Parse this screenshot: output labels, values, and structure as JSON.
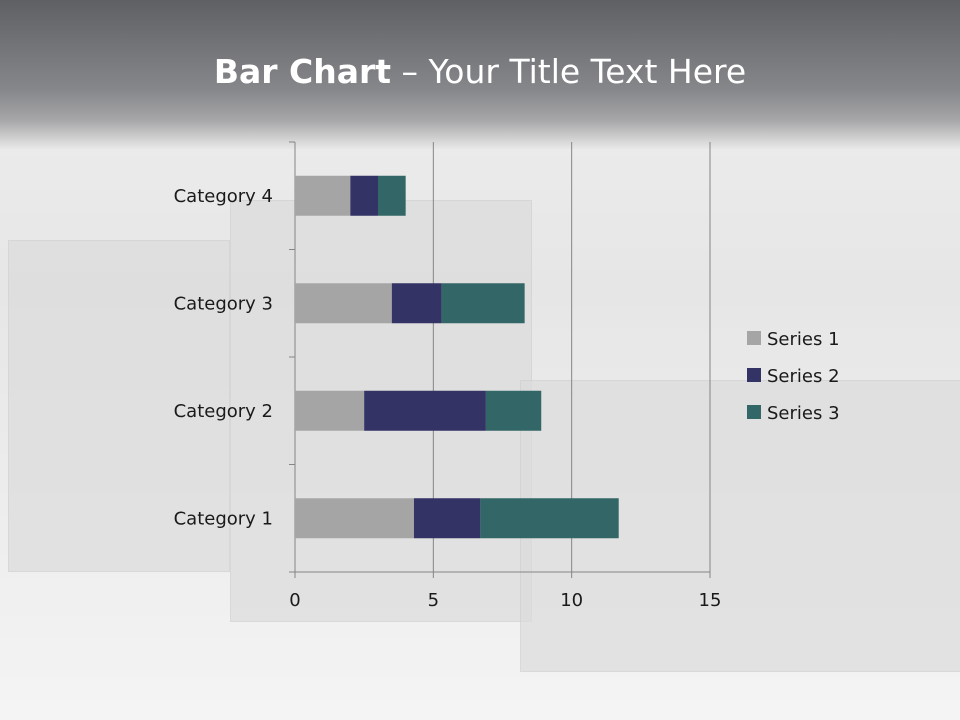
{
  "slide": {
    "title_bold": "Bar Chart",
    "title_sep": " – ",
    "title_rest": "Your Title Text Here"
  },
  "chart_data": {
    "type": "bar",
    "orientation": "horizontal",
    "stacked": true,
    "categories": [
      "Category 1",
      "Category 2",
      "Category 3",
      "Category 4"
    ],
    "series": [
      {
        "name": "Series 1",
        "values": [
          4.3,
          2.5,
          3.5,
          2
        ],
        "color": "#a5a5a5"
      },
      {
        "name": "Series 2",
        "values": [
          2.4,
          4.4,
          1.8,
          1
        ],
        "color": "#333366"
      },
      {
        "name": "Series 3",
        "values": [
          5,
          2,
          3,
          1
        ],
        "color": "#336666"
      }
    ],
    "xlim": [
      0,
      15
    ],
    "xticks": [
      "0",
      "5",
      "10",
      "15"
    ],
    "grid": true,
    "legend": "right"
  }
}
